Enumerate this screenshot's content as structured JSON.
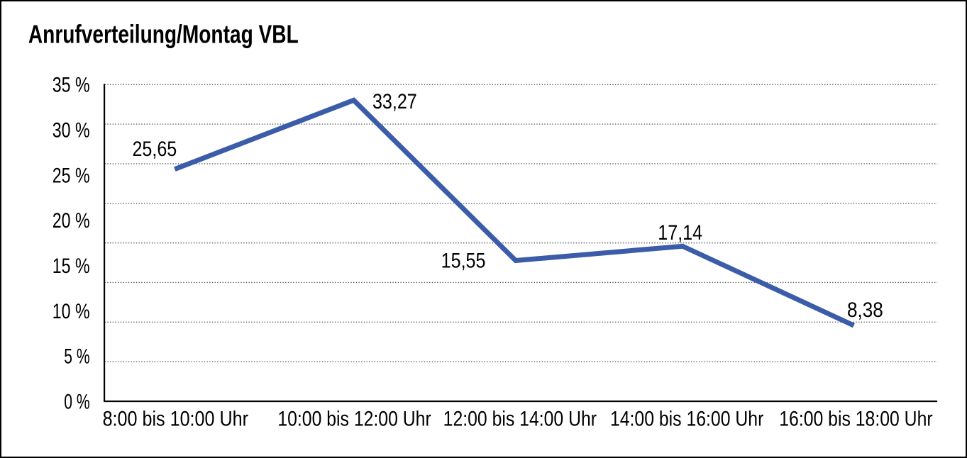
{
  "title": "Anrufverteilung/Montag VBL",
  "chart_data": {
    "type": "line",
    "title": "Anrufverteilung/Montag VBL",
    "categories": [
      "8:00 bis 10:00 Uhr",
      "10:00 bis 12:00 Uhr",
      "12:00 bis 14:00 Uhr",
      "14:00 bis 16:00 Uhr",
      "16:00 bis 18:00 Uhr"
    ],
    "values": [
      25.65,
      33.27,
      15.55,
      17.14,
      8.38
    ],
    "point_labels": [
      "25,65",
      "33,27",
      "15,55",
      "17,14",
      "8,38"
    ],
    "ytick_labels": [
      "0 %",
      "5 %",
      "10 %",
      "15 %",
      "20 %",
      "25 %",
      "30 %",
      "35 %"
    ],
    "ylim": [
      0,
      35
    ],
    "ytick_step": 5,
    "xlabel": "",
    "ylabel": "",
    "grid": "horizontal-dotted",
    "legend": "none",
    "line_color": "#3b5ca8",
    "axis_color": "#000000",
    "gridline_color": "#5f5f5f",
    "text_color": "#000000",
    "background_color": "#ffffff"
  }
}
